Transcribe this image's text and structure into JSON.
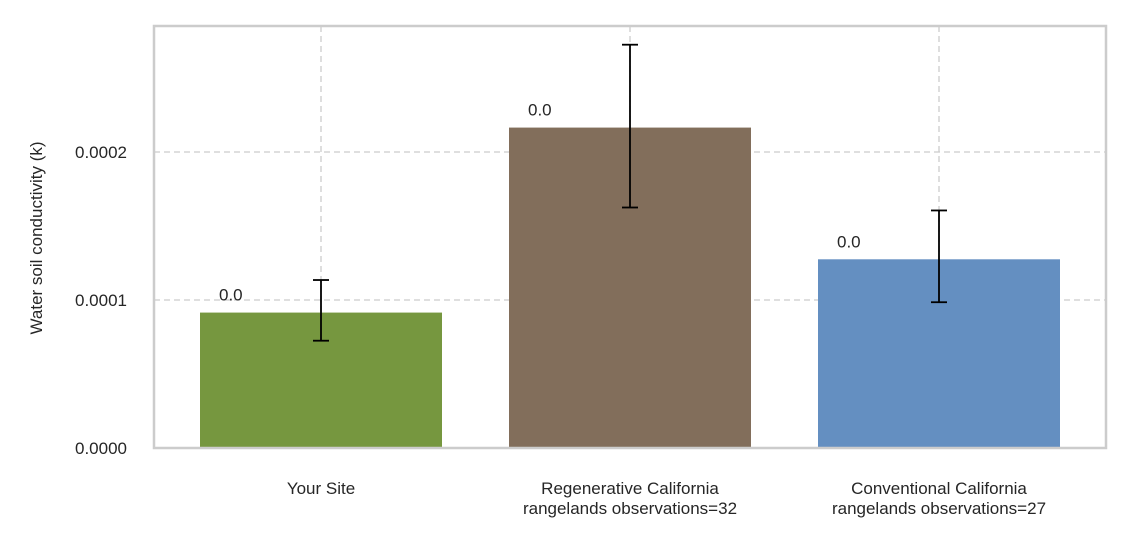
{
  "chart_data": {
    "type": "bar",
    "ylabel": "Water soil conductivity (k)",
    "ylim": [
      0,
      0.000285
    ],
    "yticks": [
      {
        "value": 0,
        "label": "0.0000"
      },
      {
        "value": 0.0001,
        "label": "0.0001"
      },
      {
        "value": 0.0002,
        "label": "0.0002"
      }
    ],
    "grid": true,
    "categories": [
      {
        "lines": [
          "Your Site"
        ]
      },
      {
        "lines": [
          "Regenerative California",
          "rangelands observations=32"
        ]
      },
      {
        "lines": [
          "Conventional California",
          "rangelands observations=27"
        ]
      }
    ],
    "values": [
      9.15e-05,
      0.0002165,
      0.0001275
    ],
    "error_low": [
      7.25e-05,
      0.0001625,
      9.85e-05
    ],
    "error_high": [
      0.0001135,
      0.0002725,
      0.0001605
    ],
    "data_labels": [
      "0.0",
      "0.0",
      "0.0"
    ],
    "colors": [
      "#76973f",
      "#826e5b",
      "#648fc1"
    ]
  }
}
